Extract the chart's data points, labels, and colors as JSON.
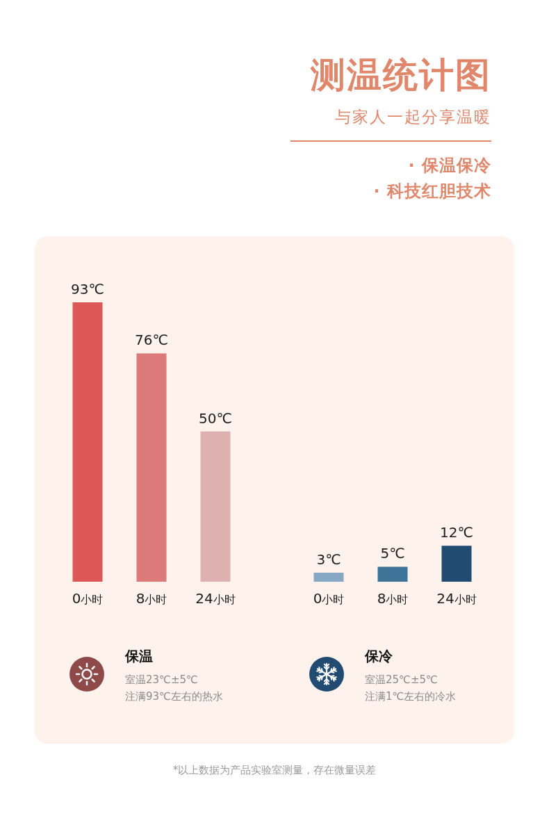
{
  "chart_data": [
    {
      "type": "other",
      "title": "测温统计图",
      "subtitle": "与家人一起分享温暖",
      "annotations": [
        "· 保温保冷",
        "· 科技红胆技术"
      ]
    },
    {
      "type": "bar",
      "title": "保温",
      "categories": [
        "0小时",
        "8小时",
        "24小时"
      ],
      "values": [
        93,
        76,
        50
      ],
      "colors": [
        "#dc5858",
        "#dc7a7a",
        "#dfb0b0"
      ],
      "value_labels": [
        "93℃",
        "76℃",
        "50℃"
      ],
      "annotations": [
        "室温23℃±5℃",
        "注满93℃左右的热水"
      ]
    },
    {
      "type": "bar",
      "title": "保冷",
      "categories": [
        "0小时",
        "8小时",
        "24小时"
      ],
      "values": [
        3,
        5,
        12
      ],
      "colors": [
        "#86a8c4",
        "#3f7499",
        "#214b70"
      ],
      "value_labels": [
        "3℃",
        "5℃",
        "12℃"
      ],
      "annotations": [
        "室温25℃±5℃",
        "注满1℃左右的冷水"
      ]
    },
    {
      "type": "other",
      "annotations": [
        "*以上数据为产品实验室测量，存在微量误差"
      ]
    }
  ]
}
